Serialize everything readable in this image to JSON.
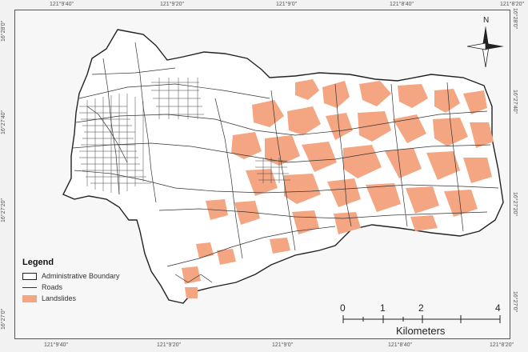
{
  "coords": {
    "top": [
      "121°9'40\"",
      "121°9'20\"",
      "121°9'0\"",
      "121°8'40\"",
      "121°8'20\""
    ],
    "bottom": [
      "121°9'40\"",
      "121°9'20\"",
      "121°9'0\"",
      "121°8'40\"",
      "121°8'20\""
    ],
    "left": [
      "16°28'0\"",
      "16°27'40\"",
      "16°27'20\"",
      "16°27'0\""
    ],
    "right": [
      "16°28'0\"",
      "16°27'40\"",
      "16°27'20\"",
      "16°27'0\""
    ]
  },
  "north": {
    "label": "N"
  },
  "legend": {
    "title": "Legend",
    "items": [
      {
        "label": "Administrative Boundary"
      },
      {
        "label": "Roads"
      },
      {
        "label": "Landslides"
      }
    ]
  },
  "scale": {
    "ticks": [
      "0",
      "1",
      "2",
      "",
      "4"
    ],
    "unit": "Kilometers"
  },
  "colors": {
    "landslide": "#f4a582",
    "boundary_fill": "#ffffff",
    "roads": "#333333"
  }
}
